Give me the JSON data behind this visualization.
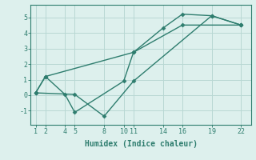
{
  "line1": {
    "x": [
      1,
      2,
      11,
      14,
      16,
      19,
      22
    ],
    "y": [
      0.15,
      1.2,
      2.75,
      4.3,
      5.2,
      5.1,
      4.5
    ]
  },
  "line2": {
    "x": [
      1,
      2,
      4,
      5,
      10,
      11,
      16,
      22
    ],
    "y": [
      0.15,
      1.2,
      0.05,
      -1.1,
      0.9,
      2.75,
      4.5,
      4.5
    ]
  },
  "line3": {
    "x": [
      1,
      5,
      8,
      11,
      19,
      22
    ],
    "y": [
      0.15,
      0.05,
      -1.35,
      0.9,
      5.1,
      4.5
    ]
  },
  "line_color": "#2e7d6e",
  "bg_color": "#ddf0ed",
  "grid_color": "#b8d8d4",
  "xlabel": "Humidex (Indice chaleur)",
  "xticks": [
    1,
    2,
    4,
    5,
    8,
    10,
    11,
    14,
    16,
    19,
    22
  ],
  "yticks": [
    -1,
    0,
    1,
    2,
    3,
    4,
    5
  ],
  "xlim": [
    0.5,
    23.0
  ],
  "ylim": [
    -1.9,
    5.8
  ]
}
